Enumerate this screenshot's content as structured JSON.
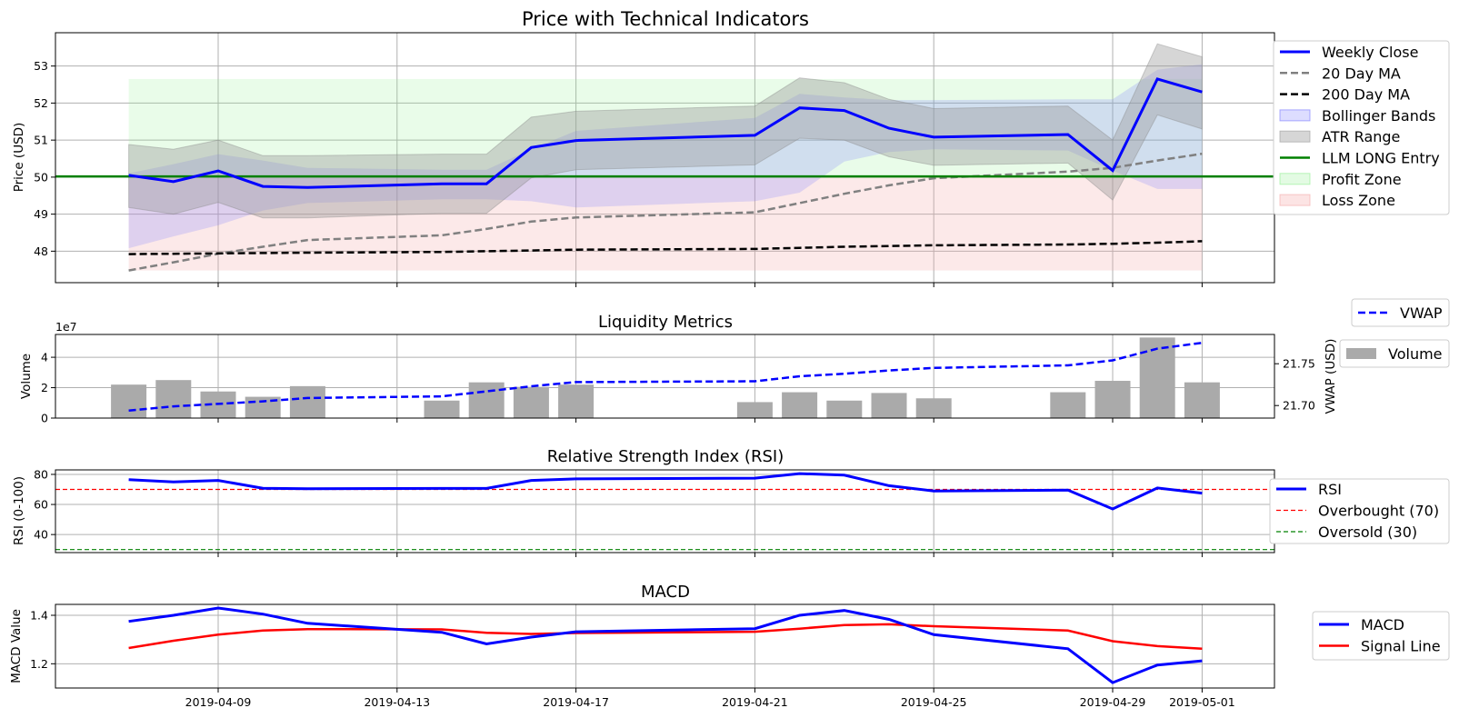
{
  "dates": [
    "2019-04-07",
    "2019-04-08",
    "2019-04-09",
    "2019-04-10",
    "2019-04-11",
    "2019-04-14",
    "2019-04-15",
    "2019-04-16",
    "2019-04-17",
    "2019-04-21",
    "2019-04-22",
    "2019-04-23",
    "2019-04-24",
    "2019-04-25",
    "2019-04-28",
    "2019-04-29",
    "2019-04-30",
    "2019-05-01"
  ],
  "x_ticks": [
    "2019-04-09",
    "2019-04-13",
    "2019-04-17",
    "2019-04-21",
    "2019-04-25",
    "2019-04-29",
    "2019-05-01"
  ],
  "chart_data": [
    {
      "type": "line",
      "title": "Price with Technical Indicators",
      "ylabel": "Price (USD)",
      "ylim": [
        47.15,
        53.9
      ],
      "yticks": [
        "48",
        "49",
        "50",
        "51",
        "52",
        "53"
      ],
      "grid": true,
      "legend_placement": "right",
      "legend": [
        "Weekly Close",
        "20 Day MA",
        "200 Day MA",
        "Bollinger Bands",
        "ATR Range",
        "LLM LONG Entry",
        "Profit Zone",
        "Loss Zone"
      ],
      "series": [
        {
          "name": "Weekly Close",
          "values": [
            50.05,
            49.88,
            50.17,
            49.75,
            49.72,
            49.82,
            49.82,
            50.8,
            50.99,
            51.13,
            51.87,
            51.8,
            51.32,
            51.08,
            51.15,
            50.18,
            52.65,
            52.3
          ]
        },
        {
          "name": "20 Day MA",
          "values": [
            47.48,
            47.7,
            47.93,
            48.12,
            48.3,
            48.43,
            48.6,
            48.8,
            48.91,
            49.05,
            49.3,
            49.55,
            49.78,
            49.97,
            50.15,
            50.25,
            50.45,
            50.63
          ]
        },
        {
          "name": "200 Day MA",
          "values": [
            47.92,
            47.93,
            47.94,
            47.95,
            47.96,
            47.98,
            48.0,
            48.02,
            48.04,
            48.06,
            48.09,
            48.12,
            48.14,
            48.16,
            48.18,
            48.2,
            48.23,
            48.27
          ]
        },
        {
          "name": "Bollinger Upper",
          "values": [
            50.1,
            50.35,
            50.62,
            50.45,
            50.25,
            50.2,
            50.2,
            50.75,
            51.25,
            51.6,
            52.25,
            52.15,
            52.08,
            52.08,
            52.1,
            52.1,
            52.9,
            53.05
          ]
        },
        {
          "name": "Bollinger Lower",
          "values": [
            48.08,
            48.4,
            48.7,
            49.1,
            49.3,
            49.4,
            49.4,
            49.35,
            49.18,
            49.35,
            49.58,
            50.42,
            50.68,
            50.75,
            50.72,
            50.18,
            49.68,
            49.68
          ]
        },
        {
          "name": "ATR Upper",
          "values": [
            50.88,
            50.75,
            51.0,
            50.58,
            50.58,
            50.62,
            50.62,
            51.62,
            51.78,
            51.92,
            52.68,
            52.55,
            52.1,
            51.85,
            51.92,
            51.0,
            53.6,
            53.25
          ]
        },
        {
          "name": "ATR Lower",
          "values": [
            49.18,
            49.0,
            49.32,
            48.9,
            48.9,
            49.02,
            49.02,
            49.98,
            50.2,
            50.33,
            51.05,
            51.0,
            50.55,
            50.32,
            50.38,
            49.38,
            51.68,
            51.3
          ]
        }
      ],
      "llm_long_entry": 50.02,
      "profit_zone": [
        50.02,
        52.65
      ],
      "loss_zone": [
        47.48,
        50.02
      ]
    },
    {
      "type": "bar",
      "title": "Liquidity Metrics",
      "ylabel": "Volume",
      "y_exponent": "1e7",
      "ylim": [
        0,
        55000000
      ],
      "yticks": [
        "0",
        "2",
        "4"
      ],
      "y2label": "VWAP (USD)",
      "y2lim": [
        21.685,
        21.785
      ],
      "y2ticks": [
        "21.70",
        "21.75"
      ],
      "legend": [
        "VWAP",
        "Volume"
      ],
      "series": [
        {
          "name": "Volume",
          "values": [
            22000000,
            25000000,
            17500000,
            14000000,
            21000000,
            11500000,
            23500000,
            20500000,
            22000000,
            10500000,
            17000000,
            11500000,
            16500000,
            13000000,
            17000000,
            24500000,
            53000000,
            23500000
          ]
        },
        {
          "name": "VWAP",
          "values": [
            21.694,
            21.699,
            21.702,
            21.705,
            21.709,
            21.711,
            21.717,
            21.723,
            21.728,
            21.729,
            21.735,
            21.738,
            21.742,
            21.745,
            21.748,
            21.754,
            21.768,
            21.775
          ]
        }
      ]
    },
    {
      "type": "line",
      "title": "Relative Strength Index (RSI)",
      "ylabel": "RSI (0-100)",
      "ylim": [
        28,
        83
      ],
      "yticks": [
        "40",
        "60",
        "80"
      ],
      "legend": [
        "RSI",
        "Overbought (70)",
        "Oversold (30)"
      ],
      "overbought": 70,
      "oversold": 30,
      "series": [
        {
          "name": "RSI",
          "values": [
            76.5,
            75.0,
            76.0,
            70.8,
            70.5,
            70.7,
            70.7,
            76.0,
            77.0,
            77.5,
            80.5,
            79.5,
            72.5,
            69.0,
            69.5,
            57.0,
            71.0,
            67.5
          ]
        }
      ]
    },
    {
      "type": "line",
      "title": "MACD",
      "ylabel": "MACD Value",
      "ylim": [
        1.1,
        1.445
      ],
      "yticks": [
        "1.2",
        "1.4"
      ],
      "legend": [
        "MACD",
        "Signal Line"
      ],
      "series": [
        {
          "name": "MACD",
          "values": [
            1.375,
            1.4,
            1.43,
            1.405,
            1.367,
            1.33,
            1.282,
            1.31,
            1.332,
            1.345,
            1.4,
            1.42,
            1.383,
            1.32,
            1.262,
            1.122,
            1.195,
            1.212
          ]
        },
        {
          "name": "Signal Line",
          "values": [
            1.265,
            1.295,
            1.32,
            1.337,
            1.343,
            1.342,
            1.328,
            1.323,
            1.327,
            1.332,
            1.345,
            1.36,
            1.363,
            1.355,
            1.337,
            1.293,
            1.273,
            1.262
          ]
        }
      ]
    }
  ],
  "colors": {
    "close": "#0000ff",
    "ma20": "#808080",
    "ma200": "#000000",
    "bollinger": "#7777ff",
    "atr": "#999999",
    "entry": "#008000",
    "profit": "#90ee90",
    "loss": "#f4a6a6",
    "volume": "#aaaaaa",
    "vwap": "#0000ff",
    "rsi": "#0000ff",
    "overbought": "#ff0000",
    "oversold": "#008000",
    "macd": "#0000ff",
    "signal": "#ff0000"
  }
}
